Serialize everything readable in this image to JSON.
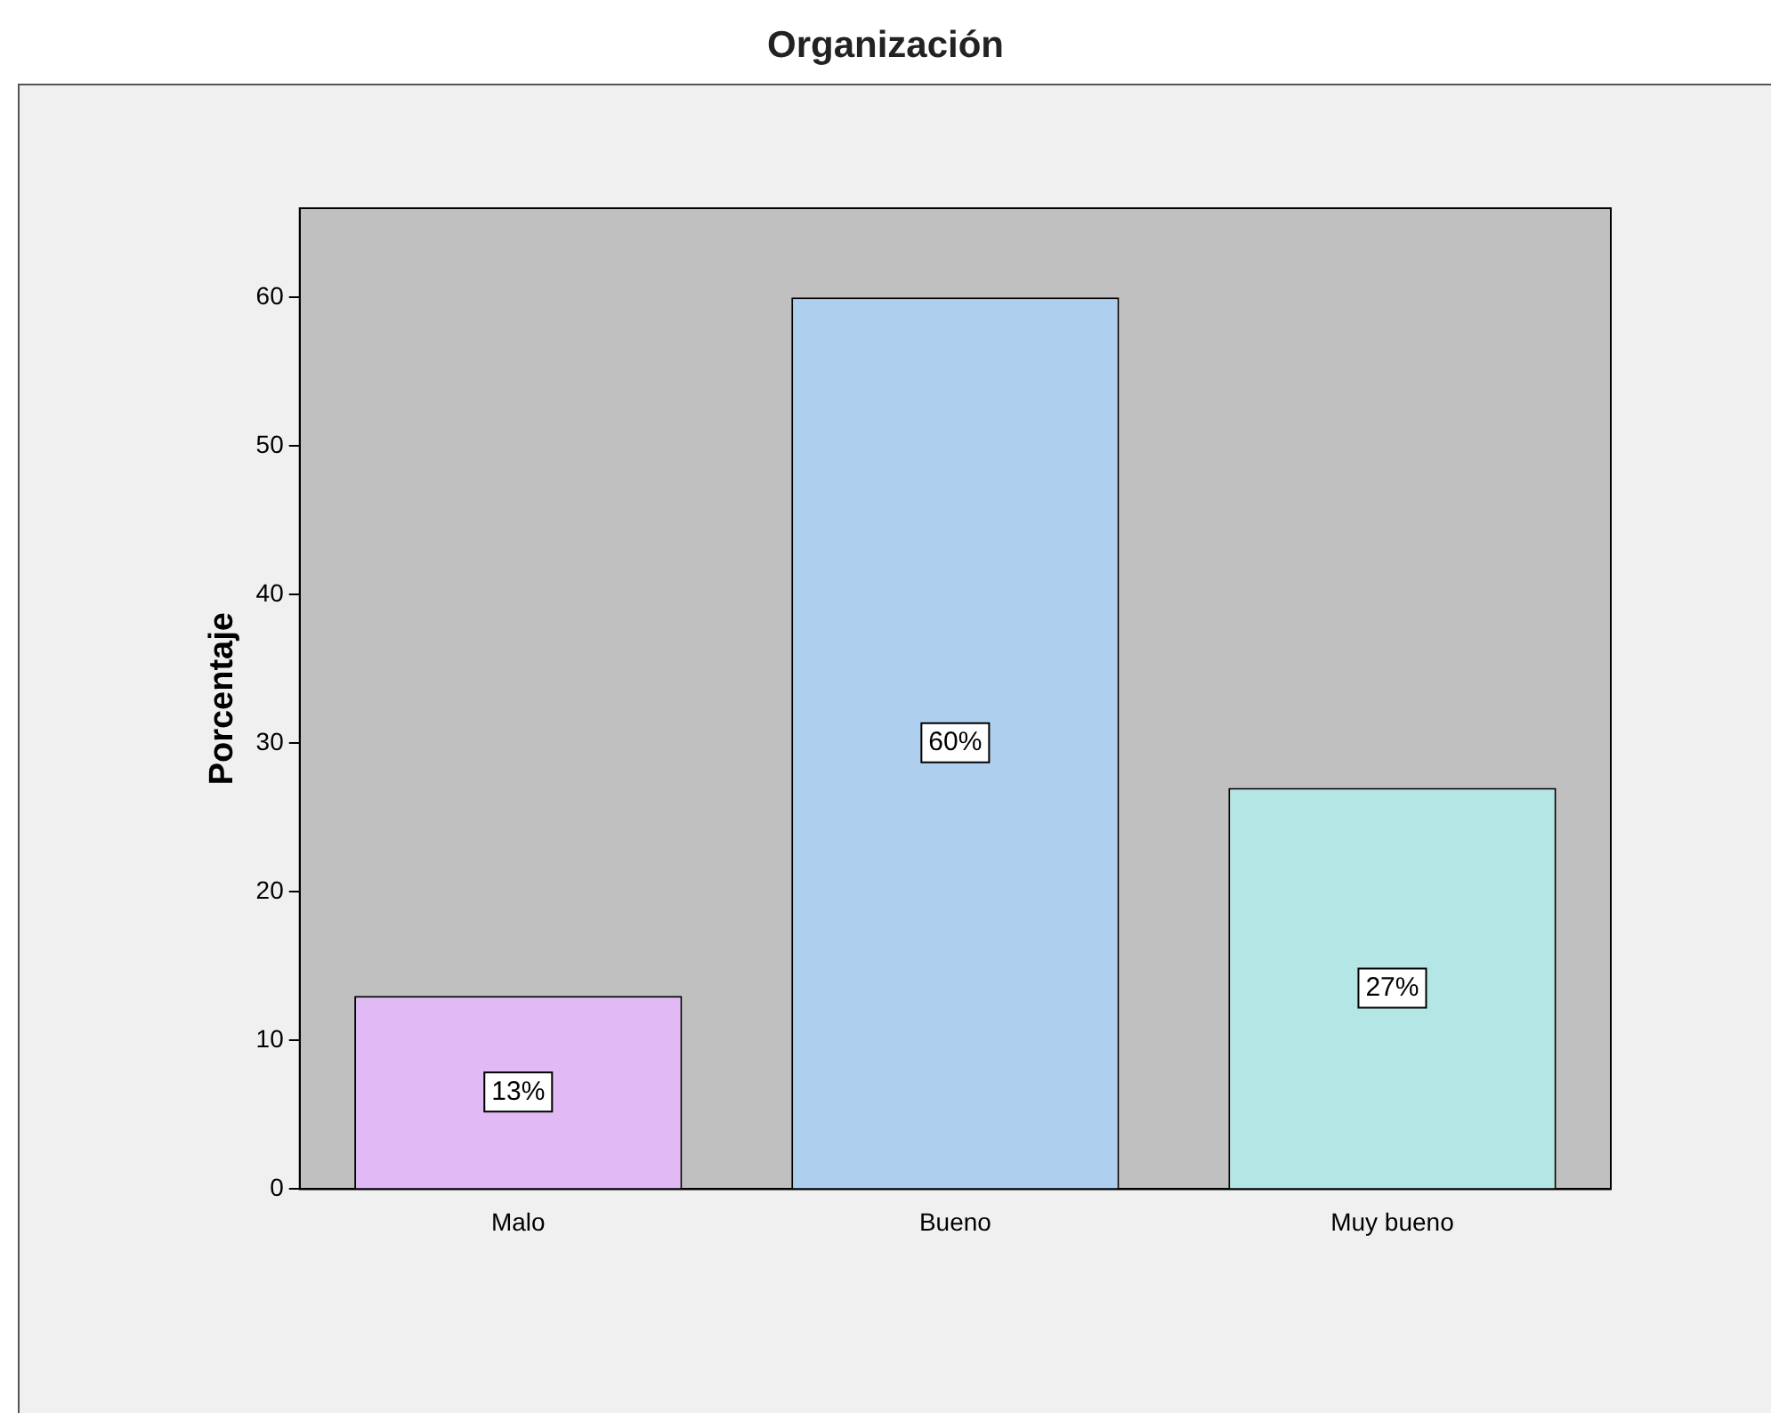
{
  "chart_data": {
    "type": "bar",
    "title": "Organización",
    "ylabel": "Porcentaje",
    "categories": [
      "Malo",
      "Bueno",
      "Muy bueno"
    ],
    "values": [
      13,
      60,
      27
    ],
    "colors": [
      "#e1b9f5",
      "#aecfed",
      "#b5e6e6"
    ],
    "value_labels": [
      "13%",
      "60%",
      "27%"
    ],
    "ylim": [
      0,
      66
    ],
    "yticks": [
      0,
      10,
      20,
      30,
      40,
      50,
      60
    ],
    "grid": false,
    "legend": false
  }
}
